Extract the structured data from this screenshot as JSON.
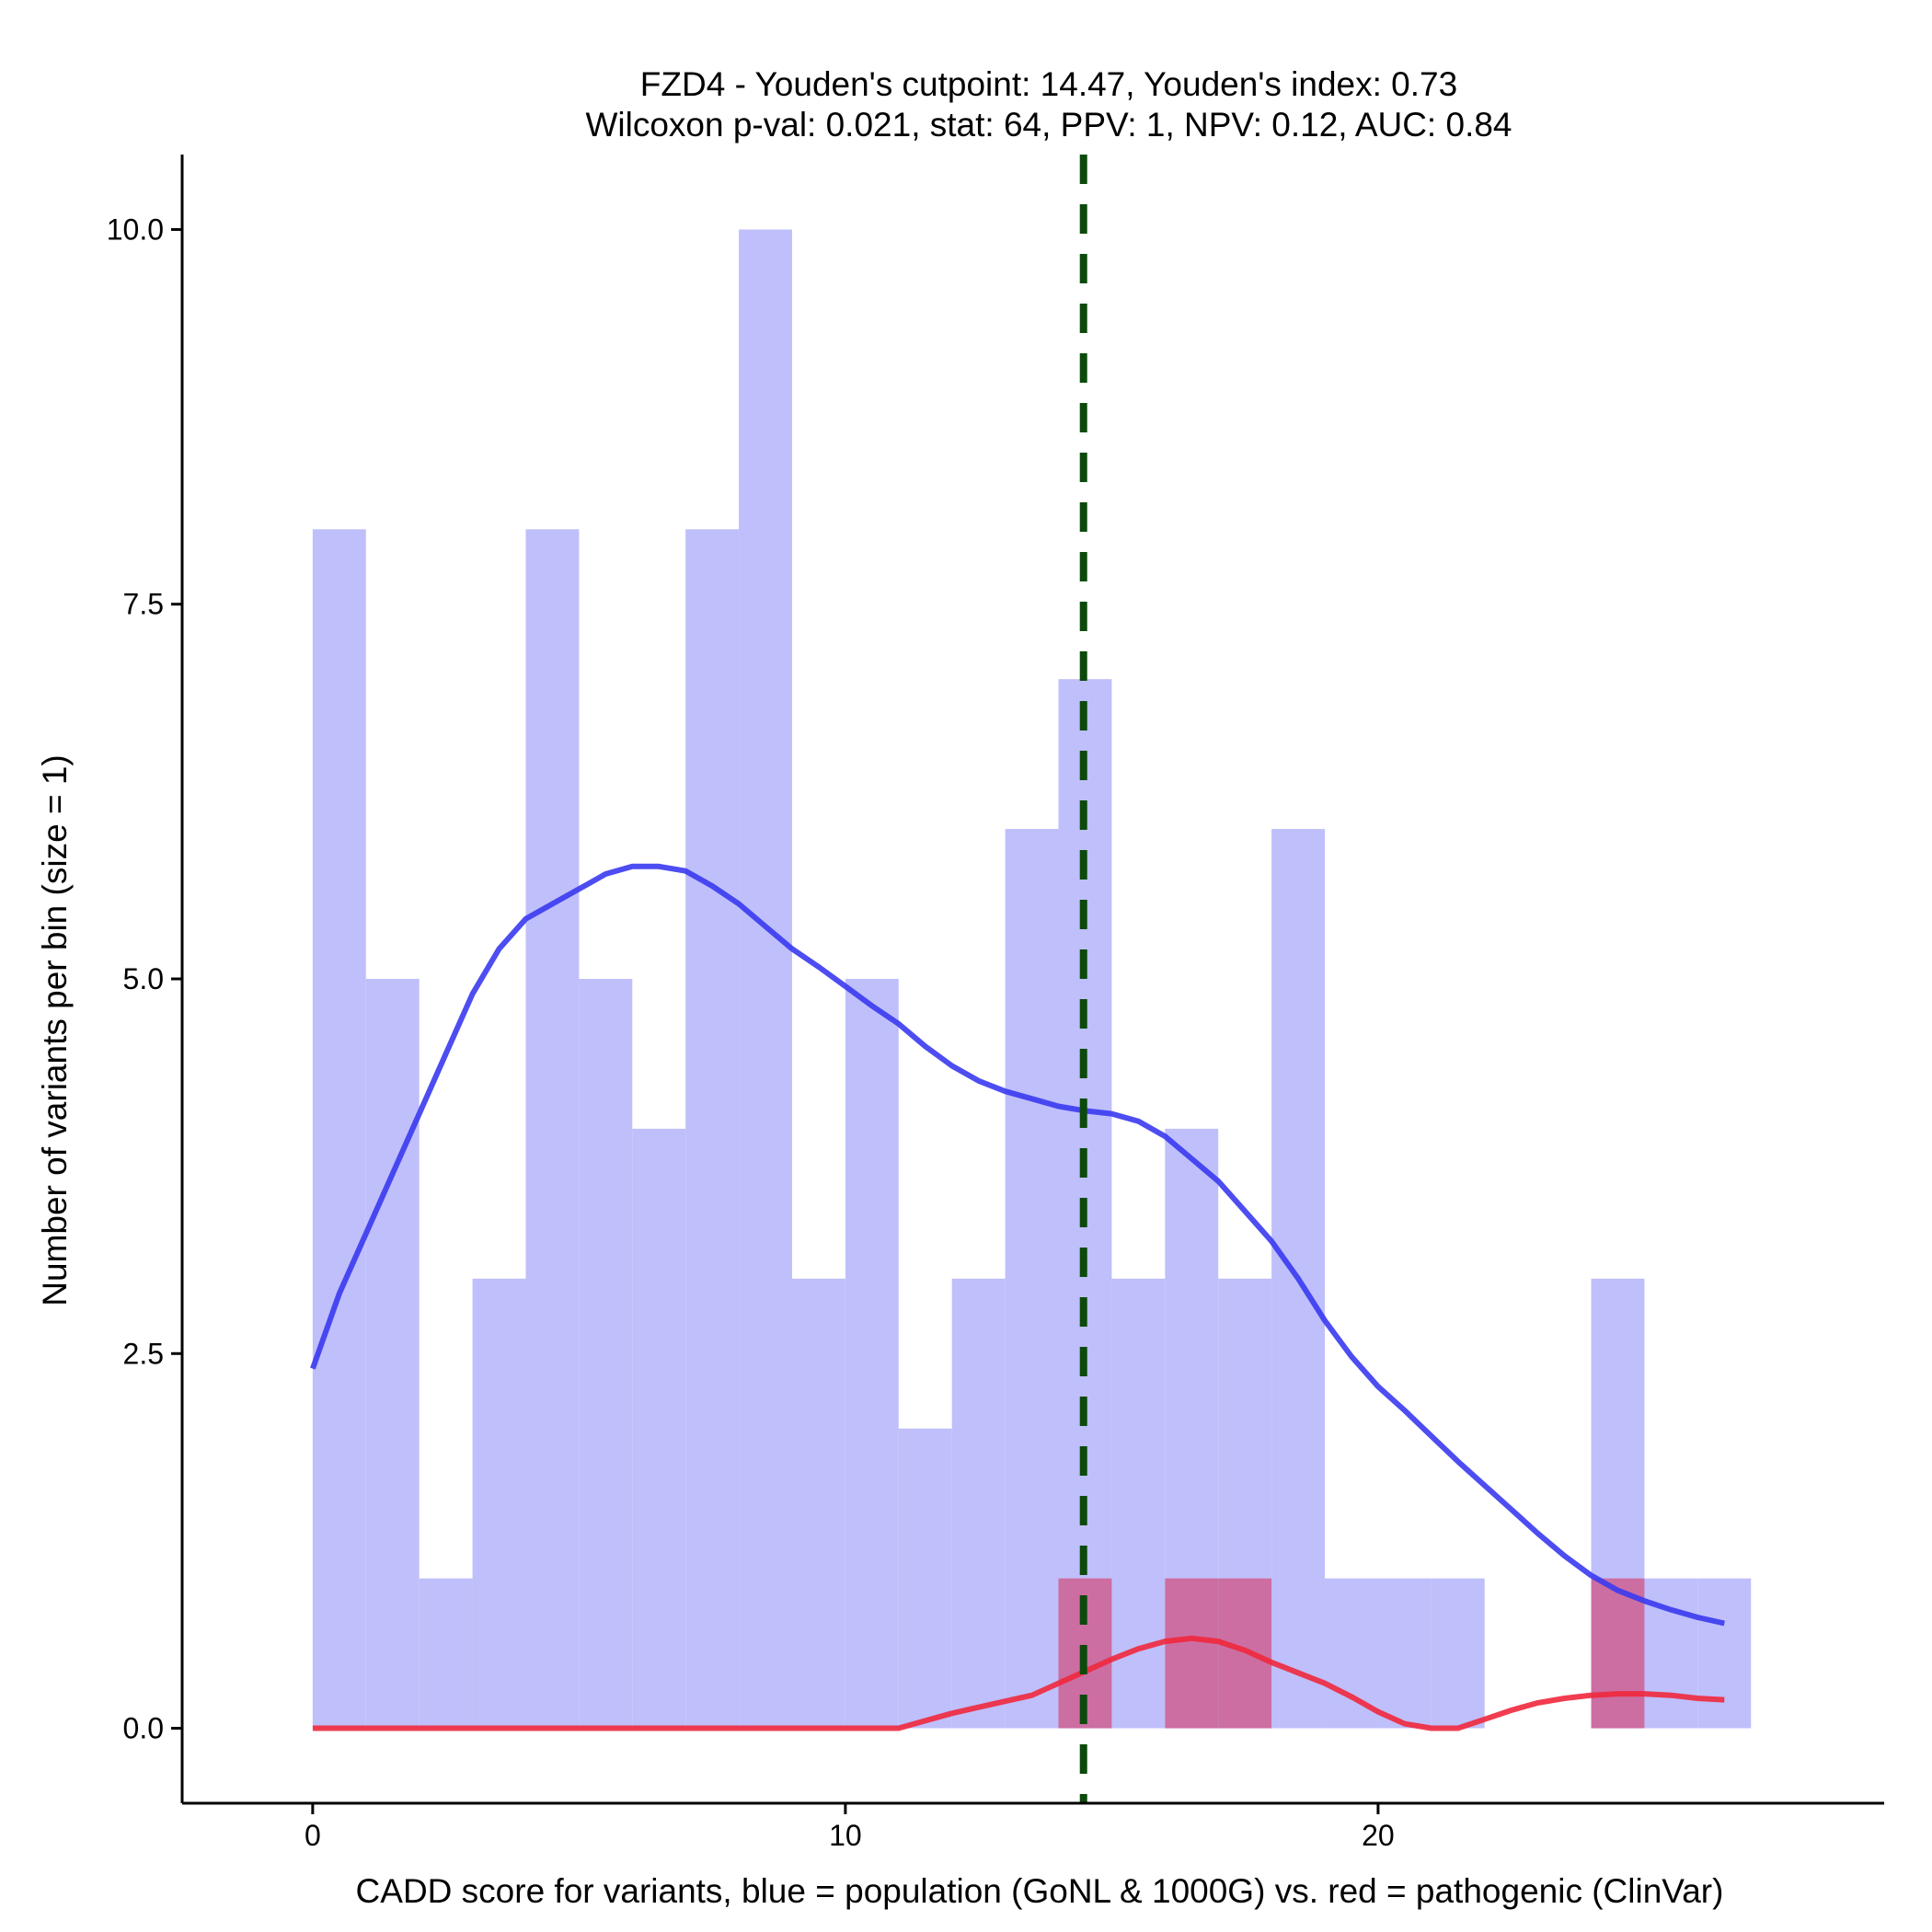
{
  "chart_data": {
    "type": "histogram",
    "title_line1": "FZD4 - Youden's cutpoint: 14.47, Youden's index: 0.73",
    "title_line2": "Wilcoxon p-val: 0.021, stat: 64, PPV: 1, NPV: 0.12, AUC: 0.84",
    "xlabel": "CADD score for variants, blue = population (GoNL & 1000G) vs. red = pathogenic (ClinVar)",
    "ylabel": "Number of variants per bin (size = 1)",
    "xlim": [
      -2.45,
      29.5
    ],
    "ylim": [
      -0.5,
      10.5
    ],
    "x_ticks": [
      0,
      10,
      20
    ],
    "x_tick_labels": [
      "0",
      "10",
      "20"
    ],
    "y_ticks": [
      0,
      2.5,
      5,
      7.5,
      10
    ],
    "y_tick_labels": [
      "0.0",
      "2.5",
      "5.0",
      "7.5",
      "10.0"
    ],
    "bin_width": 1,
    "cutpoint": 14.47,
    "series": [
      {
        "name": "population (GoNL & 1000G)",
        "color": "#3a3af0",
        "bar_color": "#bfbffb",
        "bin_starts": [
          0,
          1,
          2,
          3,
          4,
          5,
          6,
          7,
          8,
          9,
          10,
          11,
          12,
          13,
          14,
          15,
          16,
          17,
          18,
          19,
          20,
          21,
          22,
          23,
          24,
          25,
          26
        ],
        "counts": [
          8,
          5,
          1,
          3,
          8,
          5,
          4,
          8,
          10,
          3,
          5,
          2,
          3,
          6,
          7,
          3,
          4,
          3,
          6,
          1,
          1,
          1,
          0,
          0,
          3,
          1,
          1
        ],
        "density_curve": [
          [
            0,
            2.4
          ],
          [
            0.5,
            2.9
          ],
          [
            1,
            3.3
          ],
          [
            1.5,
            3.7
          ],
          [
            2,
            4.1
          ],
          [
            2.5,
            4.5
          ],
          [
            3,
            4.9
          ],
          [
            3.5,
            5.2
          ],
          [
            4,
            5.4
          ],
          [
            4.5,
            5.5
          ],
          [
            5,
            5.6
          ],
          [
            5.5,
            5.7
          ],
          [
            6,
            5.75
          ],
          [
            6.5,
            5.75
          ],
          [
            7,
            5.72
          ],
          [
            7.5,
            5.62
          ],
          [
            8,
            5.5
          ],
          [
            8.5,
            5.35
          ],
          [
            9,
            5.2
          ],
          [
            9.5,
            5.08
          ],
          [
            10,
            4.95
          ],
          [
            10.5,
            4.82
          ],
          [
            11,
            4.7
          ],
          [
            11.5,
            4.55
          ],
          [
            12,
            4.42
          ],
          [
            12.5,
            4.32
          ],
          [
            13,
            4.25
          ],
          [
            13.5,
            4.2
          ],
          [
            14,
            4.15
          ],
          [
            14.5,
            4.12
          ],
          [
            15,
            4.1
          ],
          [
            15.5,
            4.05
          ],
          [
            16,
            3.95
          ],
          [
            16.5,
            3.8
          ],
          [
            17,
            3.65
          ],
          [
            17.5,
            3.45
          ],
          [
            18,
            3.25
          ],
          [
            18.5,
            3.0
          ],
          [
            19,
            2.72
          ],
          [
            19.5,
            2.48
          ],
          [
            20,
            2.28
          ],
          [
            20.5,
            2.12
          ],
          [
            21,
            1.95
          ],
          [
            21.5,
            1.78
          ],
          [
            22,
            1.62
          ],
          [
            22.5,
            1.46
          ],
          [
            23,
            1.3
          ],
          [
            23.5,
            1.15
          ],
          [
            24,
            1.02
          ],
          [
            24.5,
            0.92
          ],
          [
            25,
            0.85
          ],
          [
            25.5,
            0.79
          ],
          [
            26,
            0.74
          ],
          [
            26.5,
            0.7
          ]
        ]
      },
      {
        "name": "pathogenic (ClinVar)",
        "color": "#f0283c",
        "bar_color": "#cc6ea2",
        "bin_starts": [
          14,
          16,
          17,
          24
        ],
        "counts": [
          1,
          1,
          1,
          1
        ],
        "density_curve": [
          [
            0,
            0
          ],
          [
            11,
            0
          ],
          [
            11.5,
            0.05
          ],
          [
            12,
            0.1
          ],
          [
            12.5,
            0.14
          ],
          [
            13,
            0.18
          ],
          [
            13.5,
            0.22
          ],
          [
            14,
            0.3
          ],
          [
            14.5,
            0.38
          ],
          [
            15,
            0.46
          ],
          [
            15.5,
            0.53
          ],
          [
            16,
            0.58
          ],
          [
            16.5,
            0.6
          ],
          [
            17,
            0.58
          ],
          [
            17.5,
            0.52
          ],
          [
            18,
            0.44
          ],
          [
            18.5,
            0.37
          ],
          [
            19,
            0.3
          ],
          [
            19.5,
            0.21
          ],
          [
            20,
            0.11
          ],
          [
            20.5,
            0.03
          ],
          [
            21,
            0
          ],
          [
            21.5,
            0
          ],
          [
            22,
            0.06
          ],
          [
            22.5,
            0.12
          ],
          [
            23,
            0.17
          ],
          [
            23.5,
            0.2
          ],
          [
            24,
            0.22
          ],
          [
            24.5,
            0.23
          ],
          [
            25,
            0.23
          ],
          [
            25.5,
            0.22
          ],
          [
            26,
            0.2
          ],
          [
            26.5,
            0.19
          ]
        ]
      }
    ],
    "cutline_color": "#0c4a0c"
  }
}
